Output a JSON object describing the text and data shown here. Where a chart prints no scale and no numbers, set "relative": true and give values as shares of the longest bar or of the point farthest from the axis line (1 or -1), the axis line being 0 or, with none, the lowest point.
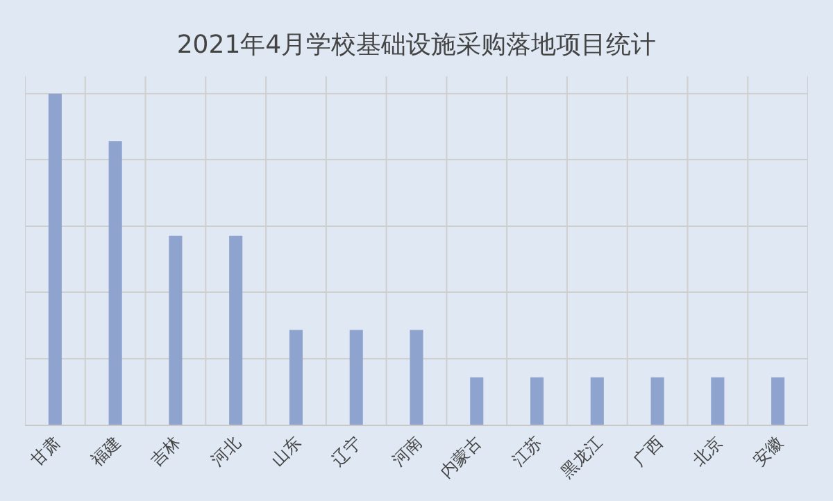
{
  "chart_data": {
    "type": "bar",
    "title": "2021年4月学校基础设施采购落地项目统计",
    "categories": [
      "甘肃",
      "福建",
      "吉林",
      "河北",
      "山东",
      "辽宁",
      "河南",
      "内蒙古",
      "江苏",
      "黑龙江",
      "广西",
      "北京",
      "安徽"
    ],
    "values": [
      1,
      0.857,
      0.571,
      0.571,
      0.286,
      0.286,
      0.286,
      0.143,
      0.143,
      0.143,
      0.143,
      0.143,
      0.143
    ],
    "color": "#8ea4cf",
    "relative": true,
    "grid": true
  }
}
